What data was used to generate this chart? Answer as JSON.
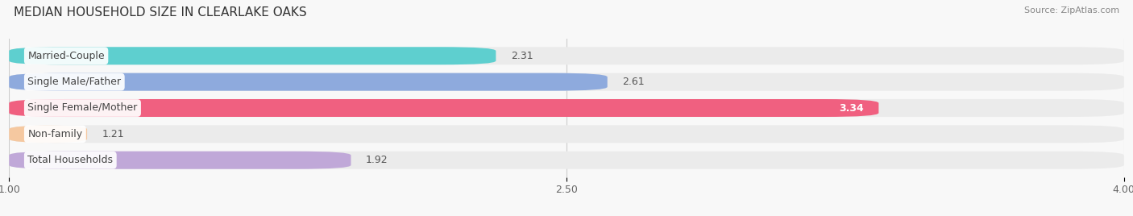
{
  "title": "MEDIAN HOUSEHOLD SIZE IN CLEARLAKE OAKS",
  "source": "Source: ZipAtlas.com",
  "categories": [
    "Married-Couple",
    "Single Male/Father",
    "Single Female/Mother",
    "Non-family",
    "Total Households"
  ],
  "values": [
    2.31,
    2.61,
    3.34,
    1.21,
    1.92
  ],
  "bar_colors": [
    "#5ecfcf",
    "#8eaadd",
    "#f06080",
    "#f5c8a0",
    "#c0a8d8"
  ],
  "bar_bg_color": "#ebebeb",
  "xlim_data": [
    1.0,
    4.0
  ],
  "xticks": [
    1.0,
    2.5,
    4.0
  ],
  "value_in_bar": [
    false,
    false,
    true,
    false,
    false
  ],
  "xlabel_fontsize": 9,
  "title_fontsize": 11,
  "label_fontsize": 9,
  "value_fontsize": 9,
  "background_color": "#f8f8f8"
}
